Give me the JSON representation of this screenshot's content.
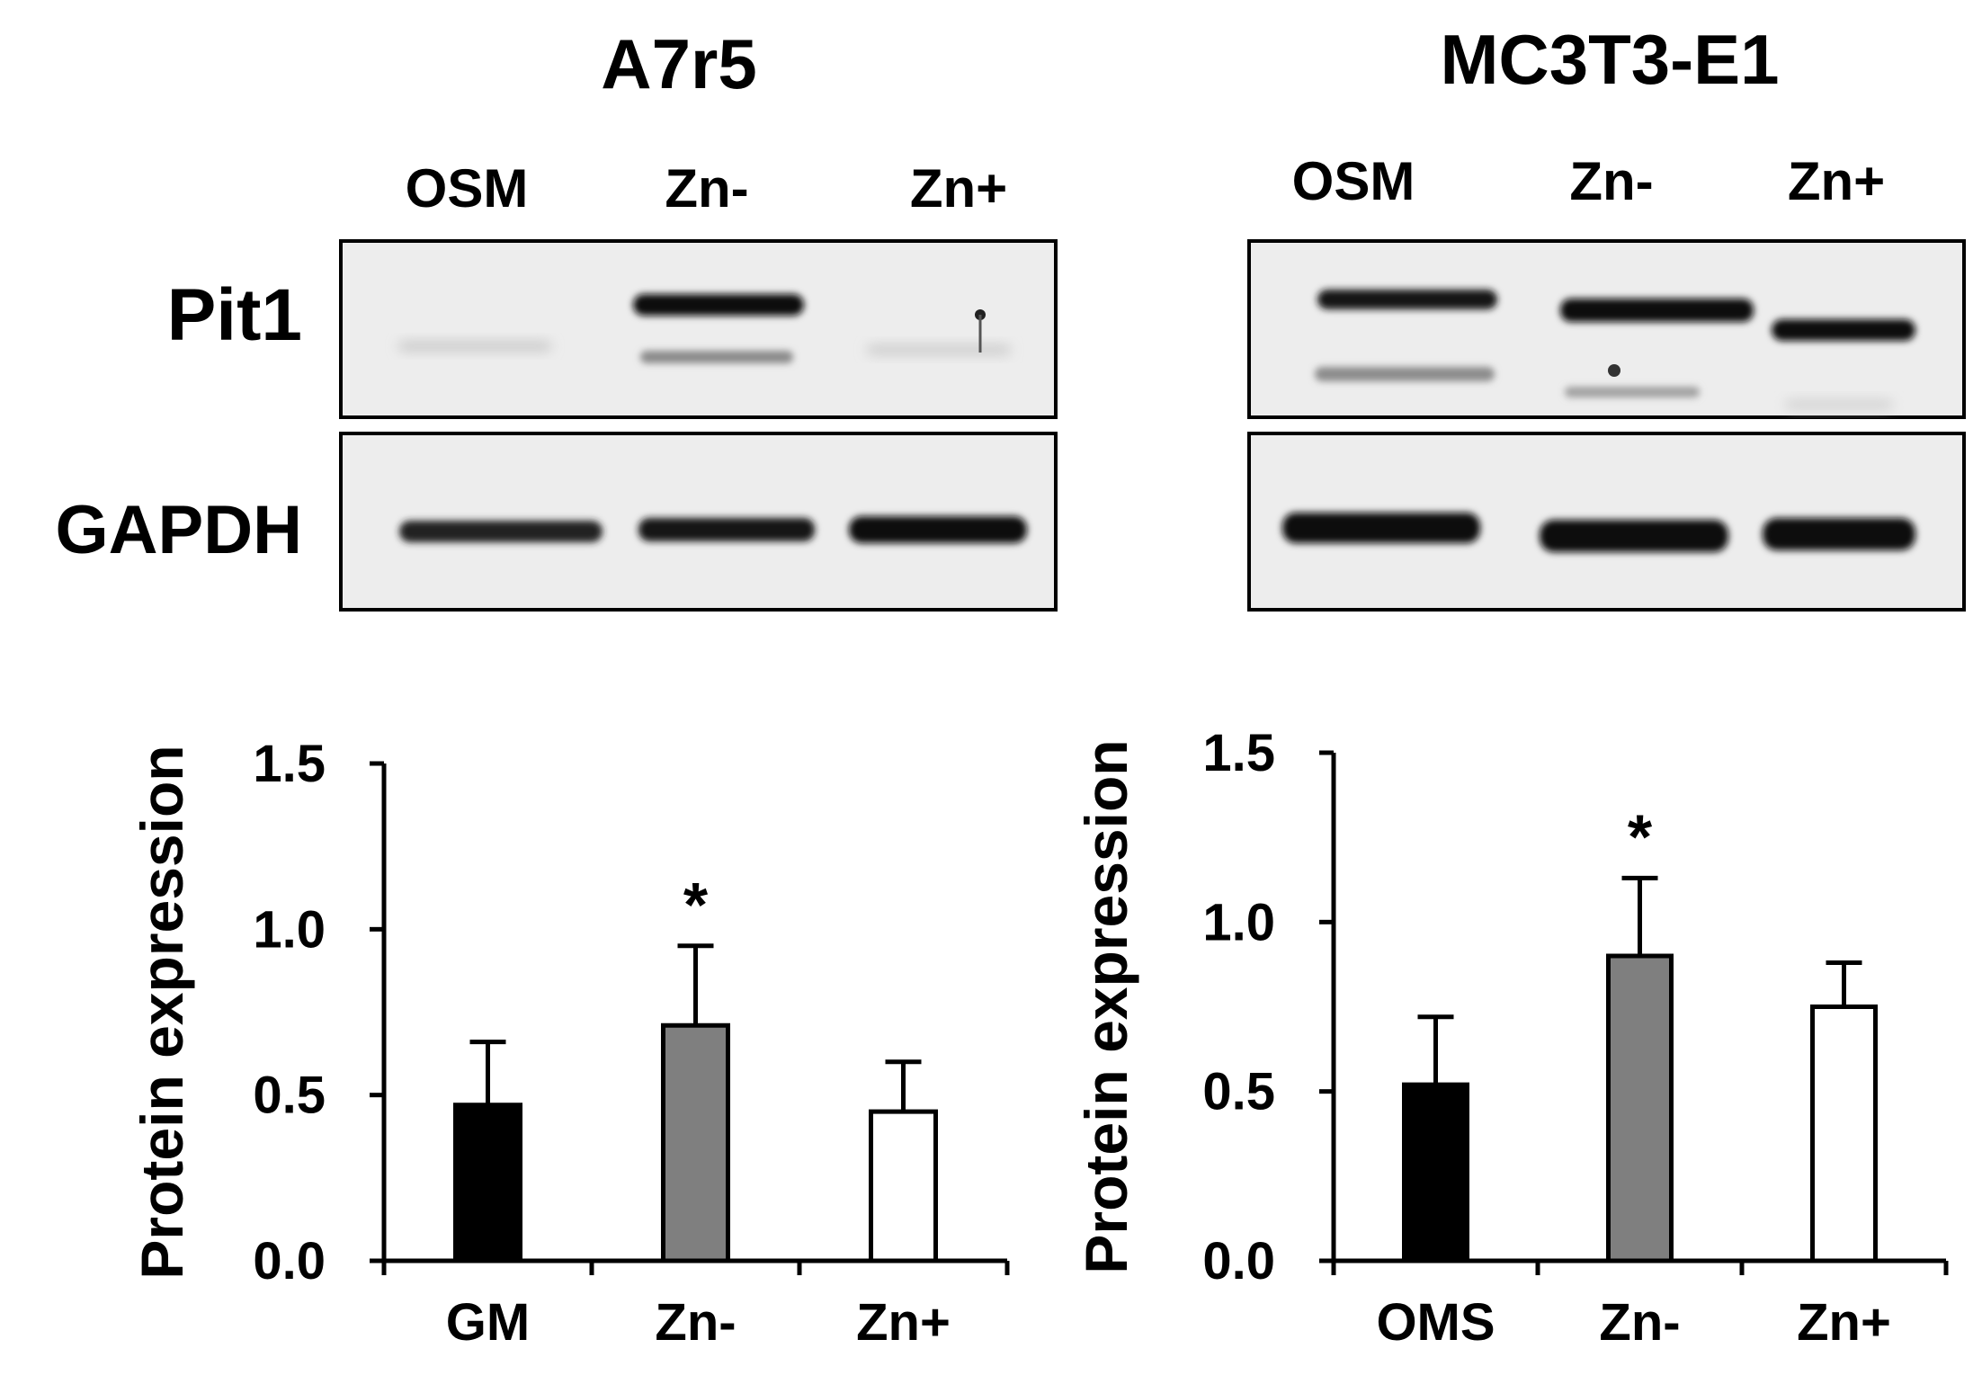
{
  "blots": [
    {
      "title": "A7r5",
      "lanes": [
        "OSM",
        "Zn-",
        "Zn+"
      ],
      "rows": [
        "Pit1",
        "GAPDH"
      ]
    },
    {
      "title": "MC3T3-E1",
      "lanes": [
        "OSM",
        "Zn-",
        "Zn+"
      ],
      "rows": [
        "",
        ""
      ]
    }
  ],
  "chart_data": [
    {
      "type": "bar",
      "categories": [
        "GM",
        "Zn-",
        "Zn+"
      ],
      "values": [
        0.47,
        0.71,
        0.45
      ],
      "errors": [
        0.19,
        0.24,
        0.15
      ],
      "bar_colors": [
        "#000000",
        "#7f7f7f",
        "#ffffff"
      ],
      "annotations": [
        "",
        "*",
        ""
      ],
      "ylabel": "Protein expression",
      "ylim": [
        0,
        1.5
      ],
      "yticks": [
        "0.0",
        "0.5",
        "1.0",
        "1.5"
      ],
      "grid": false
    },
    {
      "type": "bar",
      "categories": [
        "OMS",
        "Zn-",
        "Zn+"
      ],
      "values": [
        0.52,
        0.9,
        0.75
      ],
      "errors": [
        0.2,
        0.23,
        0.13
      ],
      "bar_colors": [
        "#000000",
        "#7f7f7f",
        "#ffffff"
      ],
      "annotations": [
        "",
        "*",
        ""
      ],
      "ylabel": "Protein expression",
      "ylim": [
        0,
        1.5
      ],
      "yticks": [
        "0.0",
        "0.5",
        "1.0",
        "1.5"
      ],
      "grid": false
    }
  ]
}
